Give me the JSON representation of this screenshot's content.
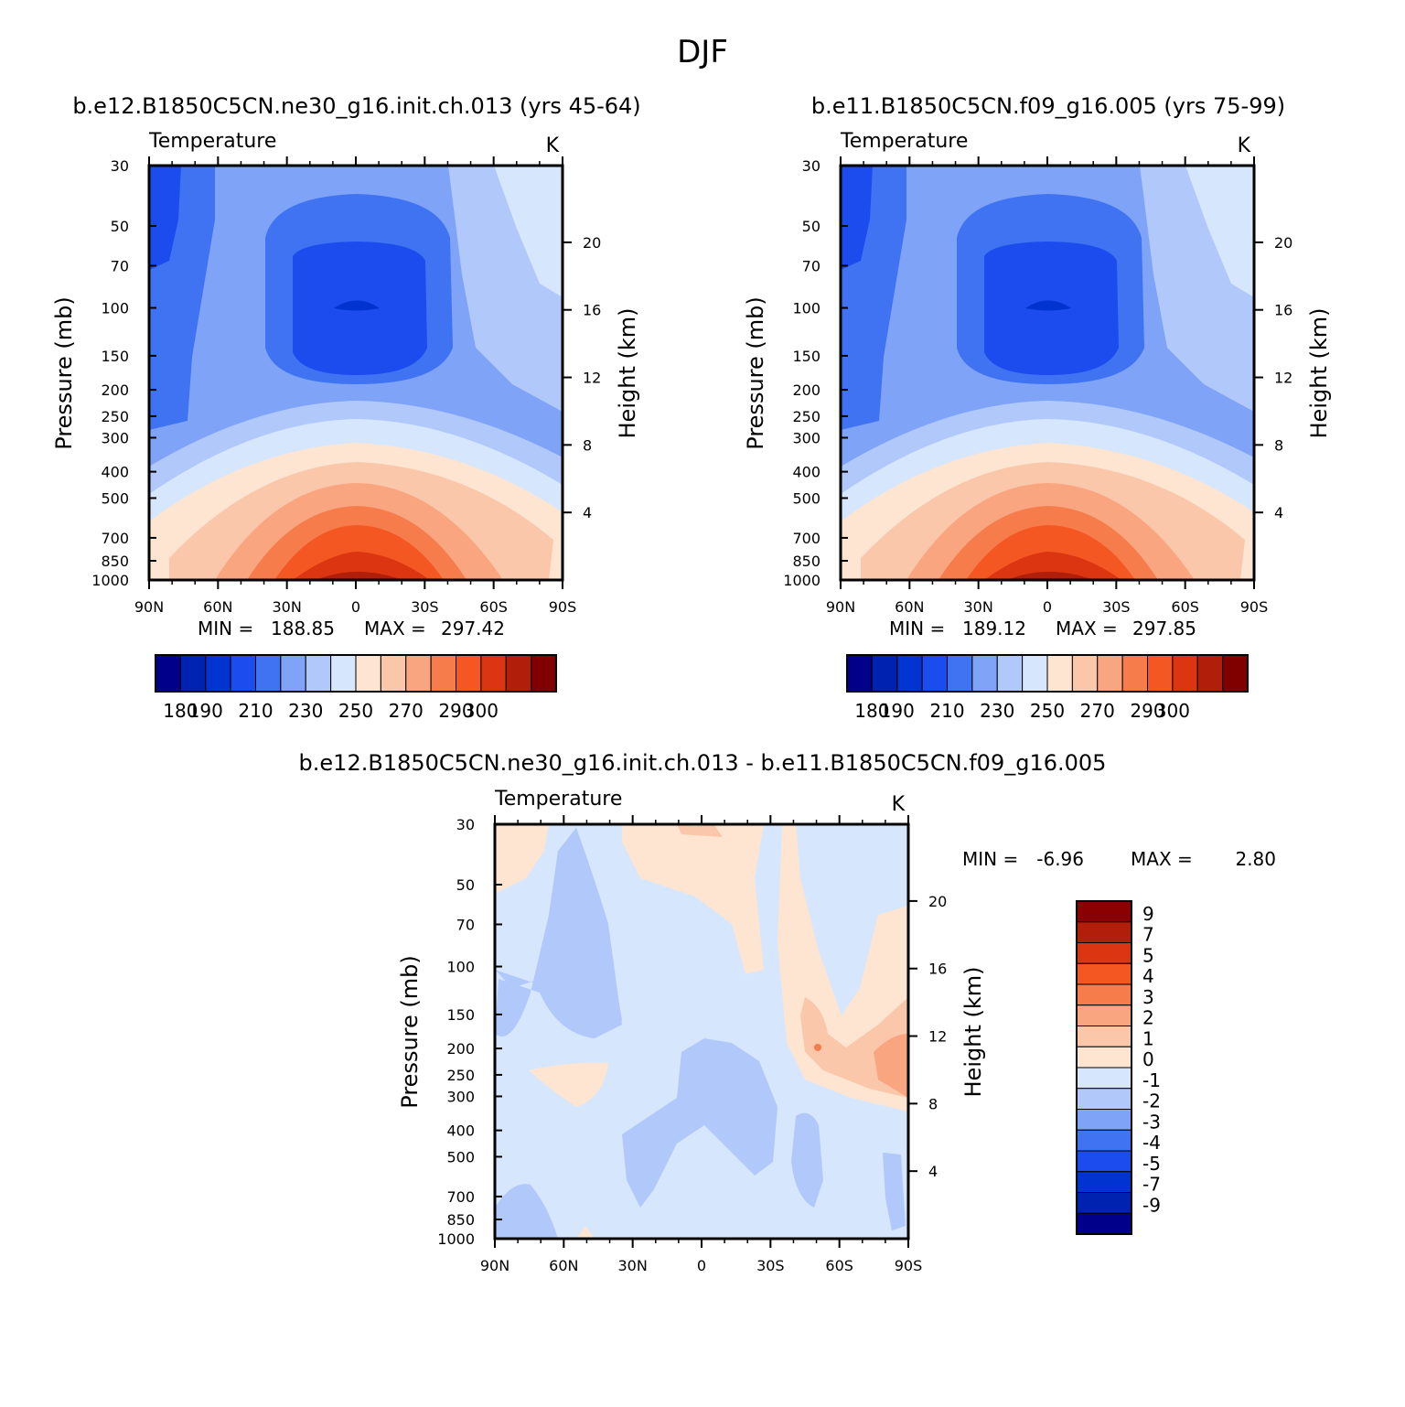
{
  "figure_title": "DJF",
  "chart_data": [
    {
      "type": "heatmap",
      "title": "b.e12.B1850C5CN.ne30_g16.init.ch.013 (yrs 45-64)",
      "left_label": "Temperature",
      "units": "K",
      "ylabel": "Pressure (mb)",
      "y2label": "Height (km)",
      "x_ticks": [
        "90N",
        "60N",
        "30N",
        "0",
        "30S",
        "60S",
        "90S"
      ],
      "y_ticks": [
        "30",
        "50",
        "70",
        "100",
        "150",
        "200",
        "250",
        "300",
        "400",
        "500",
        "700",
        "850",
        "1000"
      ],
      "y2_ticks": [
        "20",
        "16",
        "12",
        "8",
        "4"
      ],
      "min_label": "MIN =",
      "min": "188.85",
      "max_label": "MAX =",
      "max": "297.42",
      "colorbar_levels": [
        180,
        190,
        200,
        210,
        220,
        230,
        240,
        250,
        260,
        270,
        280,
        290,
        300
      ],
      "colorbar_labels": [
        "180",
        "190",
        "210",
        "230",
        "250",
        "270",
        "290",
        "300"
      ]
    },
    {
      "type": "heatmap",
      "title": "b.e11.B1850C5CN.f09_g16.005 (yrs 75-99)",
      "left_label": "Temperature",
      "units": "K",
      "ylabel": "Pressure (mb)",
      "y2label": "Height (km)",
      "x_ticks": [
        "90N",
        "60N",
        "30N",
        "0",
        "30S",
        "60S",
        "90S"
      ],
      "y_ticks": [
        "30",
        "50",
        "70",
        "100",
        "150",
        "200",
        "250",
        "300",
        "400",
        "500",
        "700",
        "850",
        "1000"
      ],
      "y2_ticks": [
        "20",
        "16",
        "12",
        "8",
        "4"
      ],
      "min_label": "MIN =",
      "min": "189.12",
      "max_label": "MAX =",
      "max": "297.85",
      "colorbar_levels": [
        180,
        190,
        200,
        210,
        220,
        230,
        240,
        250,
        260,
        270,
        280,
        290,
        300
      ],
      "colorbar_labels": [
        "180",
        "190",
        "210",
        "230",
        "250",
        "270",
        "290",
        "300"
      ]
    },
    {
      "type": "heatmap",
      "title": "b.e12.B1850C5CN.ne30_g16.init.ch.013 - b.e11.B1850C5CN.f09_g16.005",
      "left_label": "Temperature",
      "units": "K",
      "ylabel": "Pressure (mb)",
      "y2label": "Height (km)",
      "x_ticks": [
        "90N",
        "60N",
        "30N",
        "0",
        "30S",
        "60S",
        "90S"
      ],
      "y_ticks": [
        "30",
        "50",
        "70",
        "100",
        "150",
        "200",
        "250",
        "300",
        "400",
        "500",
        "700",
        "850",
        "1000"
      ],
      "y2_ticks": [
        "20",
        "16",
        "12",
        "8",
        "4"
      ],
      "min_label": "MIN =",
      "min": "-6.96",
      "max_label": "MAX =",
      "max": "2.80",
      "colorbar_levels": [
        9,
        7,
        5,
        4,
        3,
        2,
        1,
        0,
        -1,
        -2,
        -3,
        -4,
        -5,
        -7,
        -9
      ],
      "colorbar_labels": [
        "9",
        "7",
        "5",
        "4",
        "3",
        "2",
        "1",
        "0",
        "-1",
        "-2",
        "-3",
        "-4",
        "-5",
        "-7",
        "-9"
      ]
    }
  ],
  "colors": {
    "temp_palette": [
      "#00008b",
      "#0022b0",
      "#0033d0",
      "#1c4cee",
      "#3f73f2",
      "#7fa3f7",
      "#b1c8fb",
      "#d6e6fd",
      "#fde5d2",
      "#fbc7aa",
      "#f9a57f",
      "#f77c4c",
      "#f55723",
      "#dc3512",
      "#b11e0a",
      "#800000"
    ],
    "diff_palette": [
      "#8b0000",
      "#b11e0a",
      "#dc3512",
      "#f55723",
      "#f77c4c",
      "#f9a57f",
      "#fbc7aa",
      "#fde5d2",
      "#d6e6fd",
      "#b1c8fb",
      "#7fa3f7",
      "#3f73f2",
      "#1c4cee",
      "#0033d0",
      "#0022b0",
      "#00008b"
    ]
  }
}
